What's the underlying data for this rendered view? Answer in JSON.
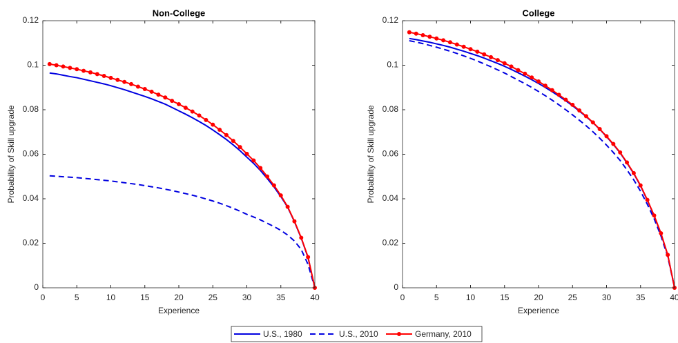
{
  "chart_data": [
    {
      "type": "line",
      "title": "Non-College",
      "x_label": "Experience",
      "y_label": "Probability of Skill upgrade",
      "x": [
        1,
        2,
        3,
        4,
        5,
        6,
        7,
        8,
        9,
        10,
        11,
        12,
        13,
        14,
        15,
        16,
        17,
        18,
        19,
        20,
        21,
        22,
        23,
        24,
        25,
        26,
        27,
        28,
        29,
        30,
        31,
        32,
        33,
        34,
        35,
        36,
        37,
        38,
        39,
        40
      ],
      "xlim": [
        0,
        40
      ],
      "xticks": [
        0,
        5,
        10,
        15,
        20,
        25,
        30,
        35,
        40
      ],
      "ylim": [
        0,
        0.12
      ],
      "yticks": [
        0,
        0.02,
        0.04,
        0.06,
        0.08,
        0.1,
        0.12
      ],
      "series": [
        {
          "name": "U.S., 1980",
          "color": "#0000e0",
          "dash": "solid",
          "marker": false,
          "values": [
            0.0965,
            0.0961,
            0.0955,
            0.0949,
            0.0944,
            0.0937,
            0.093,
            0.0923,
            0.0916,
            0.0908,
            0.0899,
            0.089,
            0.088,
            0.087,
            0.086,
            0.0849,
            0.0837,
            0.0825,
            0.081,
            0.0795,
            0.078,
            0.0764,
            0.0747,
            0.0729,
            0.0709,
            0.0688,
            0.0666,
            0.0642,
            0.0616,
            0.0587,
            0.0559,
            0.0527,
            0.0491,
            0.0453,
            0.041,
            0.0362,
            0.0297,
            0.0223,
            0.0136,
            0
          ]
        },
        {
          "name": "U.S., 2010",
          "color": "#0000e0",
          "dash": "dashed",
          "marker": false,
          "values": [
            0.0503,
            0.0501,
            0.0499,
            0.0497,
            0.0495,
            0.0492,
            0.0489,
            0.0486,
            0.0483,
            0.048,
            0.0476,
            0.0472,
            0.0468,
            0.0464,
            0.0459,
            0.0454,
            0.0449,
            0.0443,
            0.0437,
            0.043,
            0.0423,
            0.0416,
            0.0408,
            0.0399,
            0.039,
            0.038,
            0.0369,
            0.0357,
            0.0344,
            0.033,
            0.0318,
            0.0305,
            0.029,
            0.0275,
            0.0258,
            0.0237,
            0.021,
            0.0172,
            0.0105,
            0
          ]
        },
        {
          "name": "Germany, 2010",
          "color": "#ff0000",
          "dash": "solid",
          "marker": true,
          "values": [
            0.1005,
            0.1,
            0.0994,
            0.0988,
            0.0982,
            0.0975,
            0.0968,
            0.096,
            0.0952,
            0.0943,
            0.0934,
            0.0925,
            0.0915,
            0.0904,
            0.0893,
            0.0881,
            0.0868,
            0.0855,
            0.084,
            0.0825,
            0.0809,
            0.0792,
            0.0774,
            0.0754,
            0.0733,
            0.071,
            0.0686,
            0.066,
            0.0632,
            0.0602,
            0.0572,
            0.0538,
            0.05,
            0.046,
            0.0415,
            0.0364,
            0.0299,
            0.0225,
            0.0138,
            0
          ]
        }
      ]
    },
    {
      "type": "line",
      "title": "College",
      "x_label": "Experience",
      "y_label": "Probability of Skill upgrade",
      "x": [
        1,
        2,
        3,
        4,
        5,
        6,
        7,
        8,
        9,
        10,
        11,
        12,
        13,
        14,
        15,
        16,
        17,
        18,
        19,
        20,
        21,
        22,
        23,
        24,
        25,
        26,
        27,
        28,
        29,
        30,
        31,
        32,
        33,
        34,
        35,
        36,
        37,
        38,
        39,
        40
      ],
      "xlim": [
        0,
        40
      ],
      "xticks": [
        0,
        5,
        10,
        15,
        20,
        25,
        30,
        35,
        40
      ],
      "ylim": [
        0,
        0.12
      ],
      "yticks": [
        0,
        0.02,
        0.04,
        0.06,
        0.08,
        0.1,
        0.12
      ],
      "series": [
        {
          "name": "U.S., 1980",
          "color": "#0000e0",
          "dash": "solid",
          "marker": false,
          "values": [
            0.112,
            0.1115,
            0.1109,
            0.1103,
            0.1096,
            0.1089,
            0.1081,
            0.1072,
            0.1063,
            0.1053,
            0.1043,
            0.1032,
            0.102,
            0.1008,
            0.0995,
            0.0981,
            0.0966,
            0.0951,
            0.0935,
            0.0918,
            0.09,
            0.0881,
            0.0861,
            0.084,
            0.0818,
            0.0794,
            0.0769,
            0.0742,
            0.0712,
            0.0679,
            0.0644,
            0.0606,
            0.0561,
            0.0513,
            0.0458,
            0.0393,
            0.0323,
            0.0243,
            0.0147,
            0
          ]
        },
        {
          "name": "U.S., 2010",
          "color": "#0000e0",
          "dash": "dashed",
          "marker": false,
          "values": [
            0.111,
            0.1104,
            0.1097,
            0.1089,
            0.1081,
            0.1072,
            0.1063,
            0.1053,
            0.1042,
            0.1031,
            0.1019,
            0.1006,
            0.0993,
            0.0979,
            0.0965,
            0.0949,
            0.0933,
            0.0917,
            0.09,
            0.0882,
            0.0863,
            0.0843,
            0.0822,
            0.08,
            0.0777,
            0.0753,
            0.0728,
            0.0701,
            0.0672,
            0.0641,
            0.0608,
            0.0572,
            0.053,
            0.0485,
            0.0434,
            0.0375,
            0.031,
            0.0233,
            0.014,
            0
          ]
        },
        {
          "name": "Germany, 2010",
          "color": "#ff0000",
          "dash": "solid",
          "marker": true,
          "values": [
            0.1148,
            0.1142,
            0.1135,
            0.1128,
            0.112,
            0.1112,
            0.1103,
            0.1093,
            0.1083,
            0.1072,
            0.1061,
            0.1049,
            0.1036,
            0.1023,
            0.1009,
            0.0994,
            0.0978,
            0.0962,
            0.0945,
            0.0927,
            0.0908,
            0.0888,
            0.0867,
            0.0845,
            0.0822,
            0.0797,
            0.0771,
            0.0743,
            0.0713,
            0.0681,
            0.0646,
            0.0608,
            0.0563,
            0.0515,
            0.046,
            0.0395,
            0.0325,
            0.0245,
            0.0148,
            0
          ]
        }
      ]
    }
  ]
}
